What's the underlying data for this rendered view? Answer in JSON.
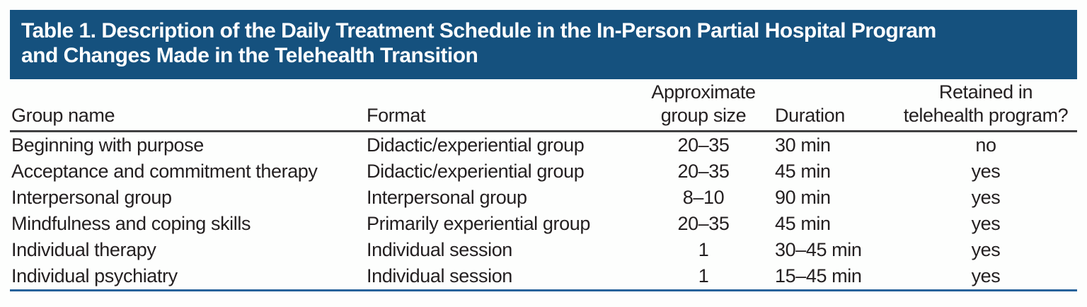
{
  "title": {
    "line1": "Table 1. Description of the Daily Treatment Schedule in the In-Person Partial Hospital Program",
    "line2": "and Changes Made in the Telehealth Transition"
  },
  "header": {
    "group_name": "Group name",
    "format": "Format",
    "group_size_line1": "Approximate",
    "group_size_line2": "group size",
    "duration": "Duration",
    "retained_line1": "Retained in",
    "retained_line2": "telehealth program?"
  },
  "rows": [
    {
      "group_name": "Beginning with purpose",
      "format": "Didactic/experiential group",
      "group_size": "20–35",
      "duration": "30 min",
      "retained": "no"
    },
    {
      "group_name": "Acceptance and commitment therapy",
      "format": "Didactic/experiential group",
      "group_size": "20–35",
      "duration": "45 min",
      "retained": "yes"
    },
    {
      "group_name": "Interpersonal group",
      "format": "Interpersonal group",
      "group_size": "8–10",
      "duration": "90 min",
      "retained": "yes"
    },
    {
      "group_name": "Mindfulness and coping skills",
      "format": "Primarily experiential group",
      "group_size": "20–35",
      "duration": "45 min",
      "retained": "yes"
    },
    {
      "group_name": "Individual therapy",
      "format": "Individual session",
      "group_size": "1",
      "duration": "30–45 min",
      "retained": "yes"
    },
    {
      "group_name": "Individual psychiatry",
      "format": "Individual session",
      "group_size": "1",
      "duration": "15–45 min",
      "retained": "yes"
    }
  ],
  "colors": {
    "title_bg": "#15517e",
    "title_text": "#ffffff",
    "body_text": "#231f20",
    "header_rule": "#404041",
    "bottom_rule": "#27639b",
    "page_bg": "#fdfefd"
  }
}
